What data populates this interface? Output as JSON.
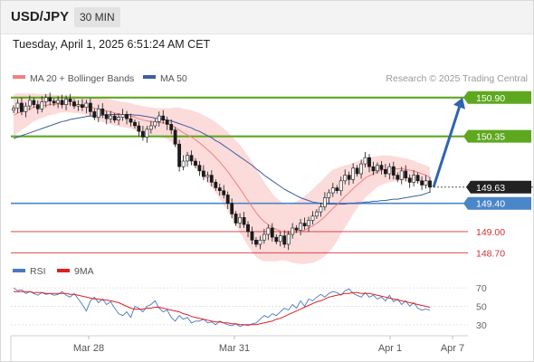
{
  "header": {
    "symbol": "USD/JPY",
    "timeframe": "30 MIN",
    "datetime": "Tuesday, April 1, 2025 6:51:24 AM CET"
  },
  "chart_data": [
    {
      "type": "line",
      "panel": "price",
      "legend": [
        {
          "label": "MA 20 + Bollinger Bands",
          "color": "#f08080"
        },
        {
          "label": "MA 50",
          "color": "#3d5f9e"
        }
      ],
      "legend_placement": "top-left",
      "credit": "Research © 2025 Trading Central",
      "ylim": [
        148.55,
        151.0
      ],
      "x_tick_labels": [
        "Mar 28",
        "Mar 31",
        "Apr 1",
        "Apr 7"
      ],
      "close": [
        150.75,
        150.82,
        150.7,
        150.78,
        150.86,
        150.8,
        150.74,
        150.84,
        150.9,
        150.85,
        150.82,
        150.86,
        150.8,
        150.88,
        150.84,
        150.78,
        150.8,
        150.76,
        150.82,
        150.7,
        150.62,
        150.74,
        150.66,
        150.6,
        150.64,
        150.58,
        150.62,
        150.66,
        150.6,
        150.55,
        150.5,
        150.42,
        150.34,
        150.45,
        150.5,
        150.56,
        150.64,
        150.58,
        150.52,
        150.44,
        150.24,
        149.92,
        150.0,
        150.08,
        150.0,
        149.94,
        149.86,
        149.78,
        149.8,
        149.7,
        149.62,
        149.58,
        149.52,
        149.4,
        149.25,
        149.12,
        149.2,
        149.1,
        149.0,
        148.88,
        148.82,
        148.88,
        148.96,
        149.05,
        148.92,
        148.86,
        148.94,
        148.82,
        148.96,
        149.05,
        149.02,
        149.12,
        149.08,
        149.16,
        149.22,
        149.28,
        149.35,
        149.48,
        149.55,
        149.62,
        149.58,
        149.72,
        149.8,
        149.74,
        149.9,
        149.82,
        149.96,
        150.05,
        149.92,
        149.86,
        149.94,
        149.88,
        149.82,
        149.92,
        149.8,
        149.74,
        149.86,
        149.76,
        149.7,
        149.8,
        149.72,
        149.66,
        149.72,
        149.63
      ],
      "ma20": [
        150.65,
        150.68,
        150.7,
        150.72,
        150.74,
        150.76,
        150.77,
        150.78,
        150.79,
        150.8,
        150.8,
        150.81,
        150.81,
        150.81,
        150.81,
        150.8,
        150.8,
        150.79,
        150.78,
        150.77,
        150.75,
        150.74,
        150.72,
        150.71,
        150.7,
        150.68,
        150.67,
        150.66,
        150.65,
        150.64,
        150.62,
        150.6,
        150.58,
        150.57,
        150.56,
        150.55,
        150.55,
        150.54,
        150.53,
        150.51,
        150.48,
        150.44,
        150.4,
        150.37,
        150.34,
        150.3,
        150.26,
        150.21,
        150.16,
        150.11,
        150.05,
        149.99,
        149.92,
        149.85,
        149.77,
        149.69,
        149.61,
        149.52,
        149.44,
        149.35,
        149.27,
        149.2,
        149.14,
        149.1,
        149.06,
        149.03,
        149.01,
        148.99,
        148.98,
        148.98,
        148.99,
        149.0,
        149.02,
        149.05,
        149.08,
        149.12,
        149.16,
        149.21,
        149.27,
        149.33,
        149.38,
        149.44,
        149.5,
        149.55,
        149.61,
        149.66,
        149.71,
        149.76,
        149.79,
        149.82,
        149.85,
        149.87,
        149.88,
        149.89,
        149.89,
        149.89,
        149.89,
        149.88,
        149.87,
        149.86,
        149.84,
        149.82,
        149.8,
        149.77
      ],
      "ma50": [
        150.32,
        150.34,
        150.36,
        150.38,
        150.4,
        150.42,
        150.44,
        150.46,
        150.48,
        150.5,
        150.52,
        150.54,
        150.56,
        150.57,
        150.59,
        150.6,
        150.61,
        150.62,
        150.63,
        150.64,
        150.64,
        150.65,
        150.65,
        150.65,
        150.66,
        150.66,
        150.66,
        150.66,
        150.66,
        150.66,
        150.65,
        150.65,
        150.64,
        150.63,
        150.62,
        150.61,
        150.6,
        150.59,
        150.58,
        150.57,
        150.55,
        150.53,
        150.51,
        150.49,
        150.47,
        150.44,
        150.42,
        150.39,
        150.36,
        150.33,
        150.29,
        150.26,
        150.22,
        150.18,
        150.14,
        150.1,
        150.06,
        150.02,
        149.98,
        149.94,
        149.89,
        149.85,
        149.8,
        149.76,
        149.72,
        149.68,
        149.64,
        149.6,
        149.57,
        149.54,
        149.51,
        149.48,
        149.46,
        149.44,
        149.42,
        149.41,
        149.4,
        149.39,
        149.39,
        149.39,
        149.39,
        149.39,
        149.39,
        149.4,
        149.4,
        149.41,
        149.41,
        149.42,
        149.42,
        149.43,
        149.43,
        149.44,
        149.44,
        149.45,
        149.46,
        149.46,
        149.47,
        149.48,
        149.49,
        149.5,
        149.51,
        149.52,
        149.54,
        149.56
      ],
      "bollinger_halfwidth": [
        0.3,
        0.28,
        0.26,
        0.24,
        0.22,
        0.2,
        0.18,
        0.17,
        0.16,
        0.15,
        0.14,
        0.13,
        0.12,
        0.12,
        0.12,
        0.12,
        0.12,
        0.12,
        0.13,
        0.14,
        0.15,
        0.16,
        0.17,
        0.17,
        0.18,
        0.18,
        0.18,
        0.18,
        0.18,
        0.18,
        0.18,
        0.19,
        0.2,
        0.2,
        0.2,
        0.2,
        0.2,
        0.21,
        0.22,
        0.24,
        0.28,
        0.32,
        0.34,
        0.36,
        0.38,
        0.4,
        0.42,
        0.44,
        0.46,
        0.48,
        0.5,
        0.52,
        0.54,
        0.56,
        0.58,
        0.6,
        0.62,
        0.63,
        0.64,
        0.64,
        0.63,
        0.6,
        0.56,
        0.52,
        0.48,
        0.45,
        0.42,
        0.4,
        0.4,
        0.42,
        0.44,
        0.46,
        0.48,
        0.5,
        0.52,
        0.54,
        0.55,
        0.56,
        0.56,
        0.55,
        0.52,
        0.48,
        0.44,
        0.4,
        0.36,
        0.33,
        0.3,
        0.28,
        0.26,
        0.24,
        0.22,
        0.21,
        0.2,
        0.19,
        0.18,
        0.17,
        0.16,
        0.16,
        0.15,
        0.15,
        0.14,
        0.14,
        0.14,
        0.14
      ],
      "levels": [
        {
          "value": 150.9,
          "label": "150.90",
          "kind": "target"
        },
        {
          "value": 150.35,
          "label": "150.35",
          "kind": "target"
        },
        {
          "value": 149.63,
          "label": "149.63",
          "kind": "current"
        },
        {
          "value": 149.4,
          "label": "149.40",
          "kind": "pivot"
        },
        {
          "value": 149.0,
          "label": "149.00",
          "kind": "support"
        },
        {
          "value": 148.7,
          "label": "148.70",
          "kind": "support"
        }
      ],
      "forecast_arrow": {
        "from": 149.63,
        "to": 150.9
      },
      "colors": {
        "target": "#5ea820",
        "pivot": "#4a86c8",
        "support": "#d43030",
        "current_bg": "#222222",
        "arrow": "#2f65b0",
        "band": "#fcd7d7",
        "candle_up": "#1a1a1a",
        "candle_down": "#1a1a1a"
      }
    },
    {
      "type": "line",
      "panel": "rsi",
      "legend": [
        {
          "label": "RSI",
          "color": "#4a78c0"
        },
        {
          "label": "9MA",
          "color": "#e02020"
        }
      ],
      "ylim": [
        20,
        80
      ],
      "y_ticks": [
        "70",
        "50",
        "30"
      ],
      "rsi": [
        70,
        67,
        68,
        64,
        66,
        64,
        62,
        65,
        63,
        64,
        62,
        63,
        66,
        62,
        60,
        64,
        58,
        52,
        45,
        56,
        60,
        54,
        58,
        52,
        55,
        48,
        42,
        40,
        44,
        38,
        50,
        48,
        44,
        50,
        52,
        56,
        48,
        44,
        46,
        38,
        34,
        40,
        36,
        38,
        32,
        34,
        34,
        36,
        32,
        33,
        30,
        34,
        32,
        30,
        29,
        31,
        28,
        30,
        29,
        31,
        32,
        36,
        40,
        38,
        42,
        40,
        44,
        48,
        46,
        52,
        48,
        56,
        50,
        58,
        56,
        60,
        63,
        60,
        64,
        66,
        65,
        62,
        67,
        69,
        64,
        62,
        60,
        65,
        60,
        62,
        58,
        60,
        56,
        62,
        55,
        58,
        52,
        56,
        50,
        54,
        48,
        46,
        47,
        46
      ],
      "ma9": [
        66,
        66,
        66,
        66,
        66,
        65,
        65,
        65,
        64,
        64,
        64,
        64,
        64,
        64,
        63,
        63,
        62,
        61,
        60,
        59,
        58,
        58,
        57,
        57,
        56,
        55,
        54,
        52,
        50,
        48,
        47,
        47,
        47,
        48,
        48,
        49,
        49,
        48,
        47,
        46,
        45,
        44,
        42,
        41,
        39,
        38,
        37,
        36,
        35,
        34,
        33,
        33,
        32,
        32,
        31,
        31,
        30,
        30,
        30,
        30,
        30,
        31,
        32,
        33,
        34,
        36,
        37,
        39,
        41,
        43,
        45,
        47,
        49,
        51,
        53,
        55,
        56,
        58,
        60,
        61,
        62,
        63,
        64,
        64,
        65,
        65,
        64,
        64,
        64,
        63,
        62,
        61,
        60,
        59,
        58,
        57,
        56,
        55,
        54,
        53,
        52,
        51,
        50,
        49
      ]
    }
  ]
}
